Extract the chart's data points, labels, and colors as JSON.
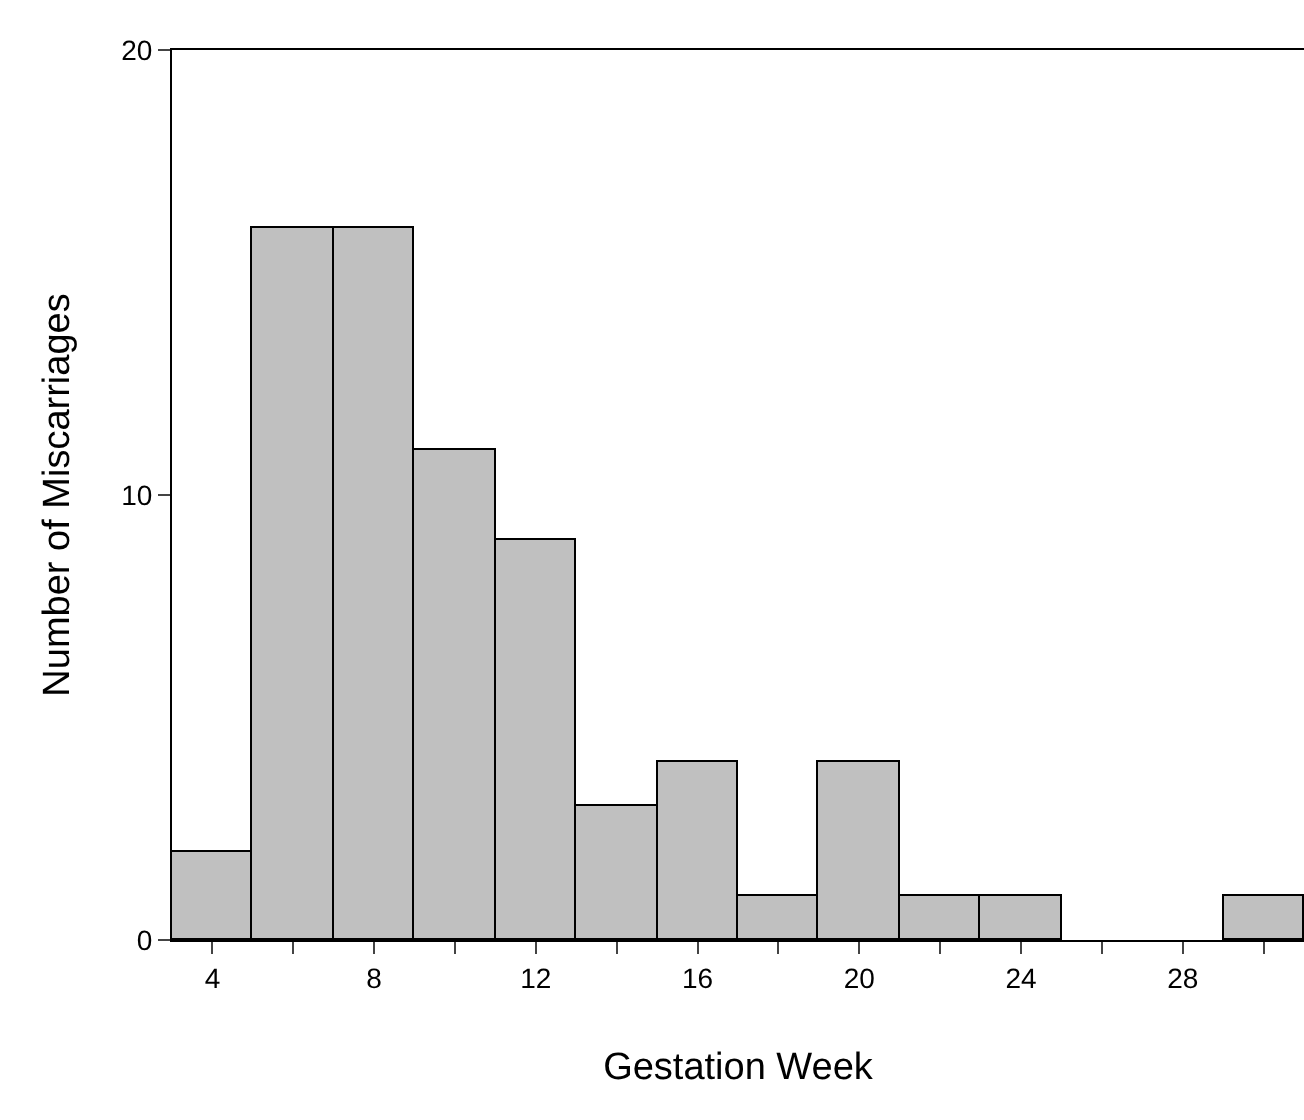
{
  "chart_data": {
    "type": "histogram",
    "xlabel": "Gestation Week",
    "ylabel": "Number of Miscarriages",
    "bins": [
      3,
      5,
      7,
      9,
      11,
      13,
      15,
      17,
      19,
      21,
      23,
      25,
      27,
      29,
      31
    ],
    "values": [
      2,
      16,
      16,
      11,
      9,
      3,
      4,
      1,
      4,
      1,
      1,
      0,
      0,
      1
    ],
    "color": "#c0c0c0",
    "xlim": [
      3,
      31
    ],
    "xticks": [
      4,
      {
        "value": 6,
        "label": null
      },
      8,
      {
        "value": 10,
        "label": null
      },
      12,
      {
        "value": 14,
        "label": null
      },
      16,
      {
        "value": 18,
        "label": null
      },
      20,
      {
        "value": 22,
        "label": null
      },
      24,
      {
        "value": 26,
        "label": null
      },
      28,
      {
        "value": 30,
        "label": null
      }
    ],
    "ylim": [
      0,
      20
    ],
    "yticks": [
      0,
      10,
      20
    ]
  }
}
